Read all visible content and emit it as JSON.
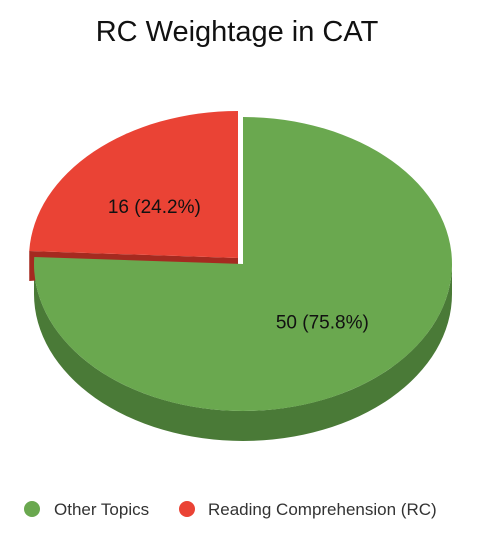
{
  "chart_data": {
    "type": "pie",
    "title": "RC Weightage in CAT",
    "three_d": true,
    "legend_position": "bottom",
    "slices": [
      {
        "label": "Other Topics",
        "value": 50,
        "percent": 75.8,
        "data_label": "50 (75.8%)",
        "color": "#6aa84f",
        "side_color": "#4a7a37"
      },
      {
        "label": "Reading Comprehension (RC)",
        "value": 16,
        "percent": 24.2,
        "data_label": "16 (24.2%)",
        "color": "#ea4335",
        "side_color": "#a52a20",
        "exploded": true
      }
    ]
  }
}
